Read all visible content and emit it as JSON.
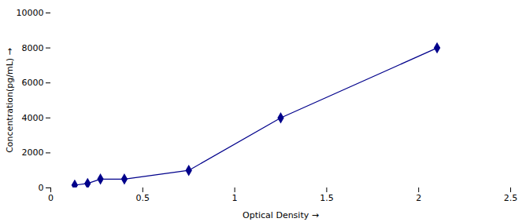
{
  "chart_data": {
    "type": "line",
    "xlabel": "Optical Density",
    "ylabel": "Concentration(pg/mL)",
    "x": [
      0.13,
      0.2,
      0.27,
      0.4,
      0.75,
      1.25,
      2.1
    ],
    "values": [
      156,
      250,
      500,
      500,
      1000,
      4000,
      8000
    ],
    "color": "#00008B",
    "marker": "diamond",
    "line_style": "solid",
    "xlim": [
      0,
      2.5
    ],
    "ylim": [
      0,
      10000
    ],
    "xticks": [
      0,
      0.5,
      1,
      1.5,
      2,
      2.5
    ],
    "yticks": [
      0,
      2000,
      4000,
      6000,
      8000,
      10000
    ],
    "grid": false
  }
}
